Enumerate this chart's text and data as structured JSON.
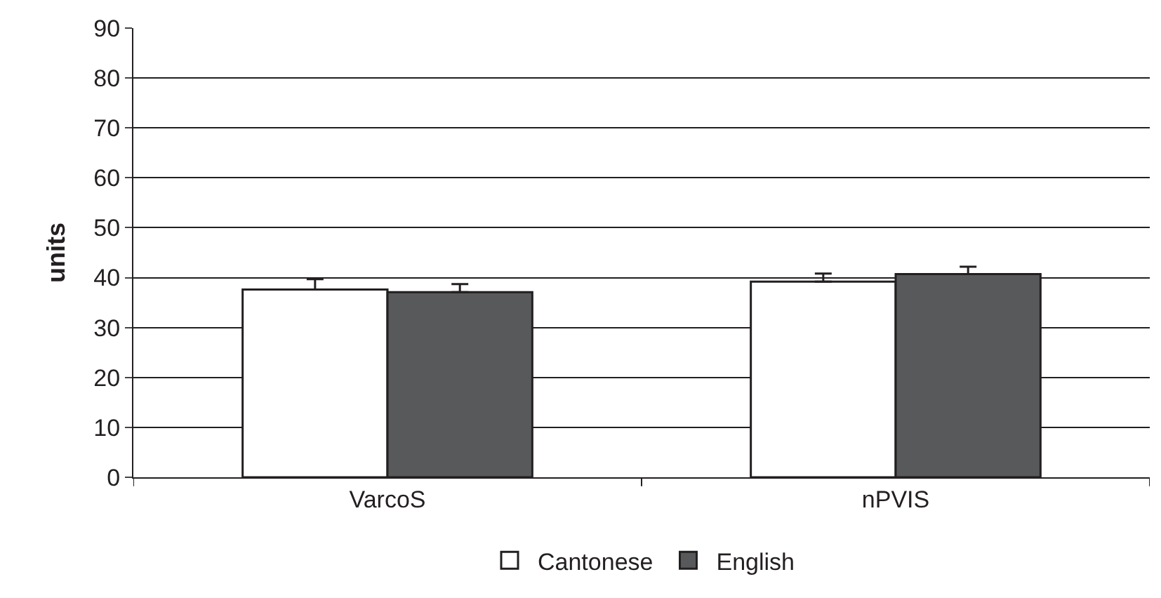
{
  "chart_data": {
    "type": "bar",
    "ylabel": "units",
    "categories": [
      "VarcoS",
      "nPVIS"
    ],
    "series": [
      {
        "name": "Cantonese",
        "color": "#ffffff",
        "values": [
          37.6,
          39.2
        ],
        "errors": [
          [
            37.6,
            39.7
          ],
          [
            39.2,
            40.8
          ]
        ]
      },
      {
        "name": "English",
        "color": "#58595b",
        "values": [
          37.1,
          40.7
        ],
        "errors": [
          [
            37.1,
            38.7
          ],
          [
            40.7,
            42.2
          ]
        ]
      }
    ],
    "ylim": [
      0,
      90
    ],
    "yticks": [
      0,
      10,
      20,
      30,
      40,
      50,
      60,
      70,
      80,
      90
    ],
    "grid": "y",
    "legend": "bottom"
  }
}
